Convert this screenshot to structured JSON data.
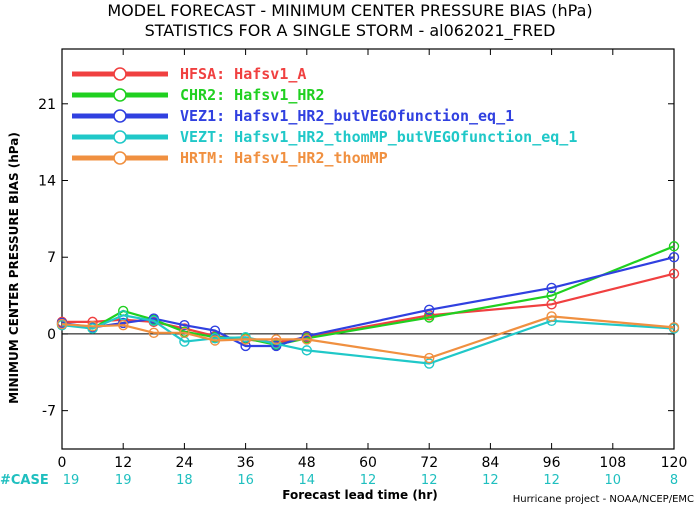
{
  "chart_data": {
    "type": "line",
    "title_line1": "MODEL FORECAST - MINIMUM CENTER PRESSURE BIAS (hPa)",
    "title_line2": "STATISTICS FOR A SINGLE STORM - al062021_FRED",
    "xlabel": "Forecast lead time (hr)",
    "ylabel": "MINIMUM CENTER PRESSURE BIAS (hPa)",
    "xlim": [
      0,
      120
    ],
    "ylim": [
      -10.5,
      26
    ],
    "x_ticks": [
      0,
      12,
      24,
      36,
      48,
      60,
      72,
      84,
      96,
      108,
      120
    ],
    "y_ticks": [
      -7,
      0,
      7,
      14,
      21
    ],
    "zero_line": true,
    "grid": false,
    "legend_position": "top-left",
    "series": [
      {
        "name": "HFSA",
        "label": "HFSA: Hafsv1_A",
        "color": "#f04040",
        "x": [
          0,
          6,
          12,
          18,
          24,
          30,
          36,
          42,
          48,
          72,
          96,
          120
        ],
        "values": [
          1.1,
          1.1,
          1.3,
          1.1,
          0.5,
          -0.2,
          -0.5,
          -0.8,
          -0.3,
          1.7,
          2.7,
          5.5
        ]
      },
      {
        "name": "CHR2",
        "label": "CHR2: Hafsv1_HR2",
        "color": "#20d020",
        "x": [
          0,
          6,
          12,
          18,
          24,
          30,
          36,
          42,
          48,
          72,
          96,
          120
        ],
        "values": [
          0.9,
          0.5,
          2.1,
          1.3,
          0.2,
          -0.3,
          -0.4,
          -1.0,
          -0.4,
          1.5,
          3.5,
          8.0
        ]
      },
      {
        "name": "VEZ1",
        "label": "VEZ1: Hafsv1_HR2_butVEGOfunction_eq_1",
        "color": "#3040e0",
        "x": [
          0,
          6,
          12,
          18,
          24,
          30,
          36,
          42,
          48,
          72,
          96,
          120
        ],
        "values": [
          1.0,
          0.6,
          1.0,
          1.4,
          0.8,
          0.3,
          -1.1,
          -1.1,
          -0.2,
          2.2,
          4.2,
          7.0
        ]
      },
      {
        "name": "VEZT",
        "label": "VEZT: Hafsv1_HR2_thomMP_butVEGOfunction_eq_1",
        "color": "#20c8c8",
        "x": [
          0,
          6,
          12,
          18,
          24,
          30,
          36,
          42,
          48,
          72,
          96,
          120
        ],
        "values": [
          0.8,
          0.5,
          1.7,
          1.2,
          -0.7,
          -0.4,
          -0.3,
          -0.9,
          -1.5,
          -2.7,
          1.2,
          0.5
        ]
      },
      {
        "name": "HRTM",
        "label": "HRTM: Hafsv1_HR2_thomMP",
        "color": "#f09040",
        "x": [
          0,
          6,
          12,
          18,
          24,
          30,
          36,
          42,
          48,
          72,
          96,
          120
        ],
        "values": [
          0.9,
          0.7,
          0.8,
          0.1,
          0.1,
          -0.6,
          -0.5,
          -0.5,
          -0.5,
          -2.2,
          1.6,
          0.6
        ]
      }
    ],
    "case_label": "#CASE",
    "case_x": [
      0,
      12,
      24,
      36,
      48,
      60,
      72,
      84,
      96,
      108,
      120
    ],
    "case_counts": [
      "19",
      "19",
      "18",
      "16",
      "14",
      "12",
      "12",
      "12",
      "12",
      "10",
      "8"
    ],
    "credit": "Hurricane project - NOAA/NCEP/EMC"
  }
}
